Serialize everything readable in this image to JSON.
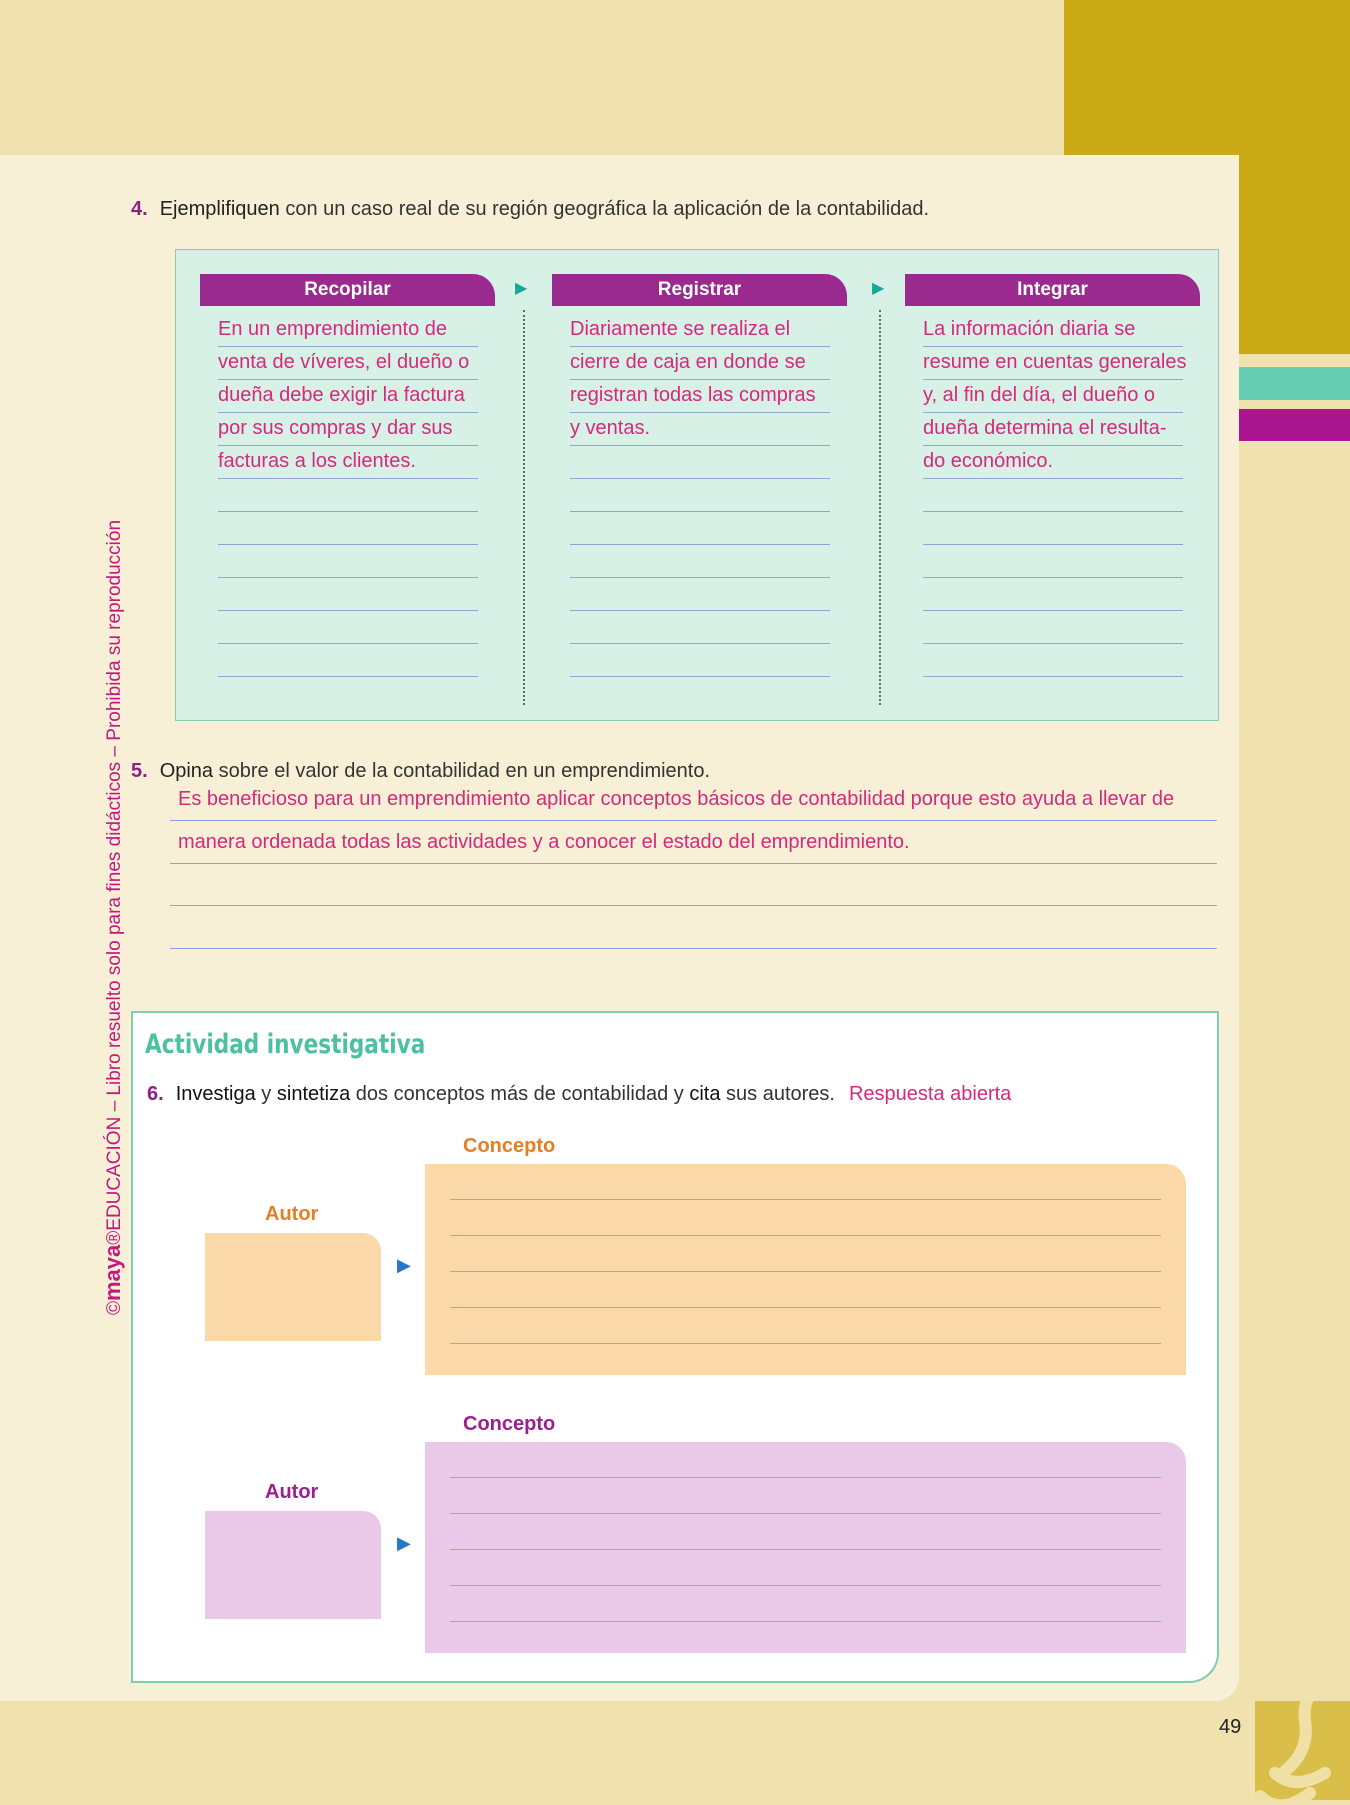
{
  "side_text": {
    "copyright": "©",
    "brand": "maya",
    "rest": "®EDUCACIÓN – Libro resuelto solo para fines didácticos – Prohibida su reproducción"
  },
  "q4": {
    "number": "4.",
    "verb": "Ejemplifiquen",
    "text": " con un caso real de su región geográfica la aplicación de la contabilidad."
  },
  "steps": [
    {
      "title": "Recopilar",
      "lines": [
        "En un emprendimiento de",
        "venta de víveres, el dueño o",
        "dueña debe exigir la factura",
        "por sus compras y dar sus",
        "facturas a los clientes.",
        "",
        "",
        "",
        "",
        "",
        ""
      ]
    },
    {
      "title": "Registrar",
      "lines": [
        "Diariamente se realiza el",
        "cierre de caja en donde se",
        "registran todas las compras",
        "y ventas.",
        "",
        "",
        "",
        "",
        "",
        "",
        ""
      ]
    },
    {
      "title": "Integrar",
      "lines": [
        "La información diaria se",
        "resume en cuentas generales",
        "y, al fin del día, el dueño o",
        "dueña determina el resulta-",
        "do económico.",
        "",
        "",
        "",
        "",
        "",
        ""
      ]
    }
  ],
  "q5": {
    "number": "5.",
    "verb": "Opina",
    "text": " sobre el valor de la contabilidad en un emprendimiento.",
    "answer_lines": [
      "Es beneficioso para un emprendimiento aplicar conceptos básicos de contabilidad porque esto ayuda a llevar de",
      "manera ordenada todas las actividades y a conocer el estado del emprendimiento.",
      "",
      ""
    ]
  },
  "activity": {
    "title": "Actividad investigativa",
    "q6": {
      "number": "6.",
      "w1": "Investiga",
      "t1": " y ",
      "w2": "sintetiza",
      "t2": " dos conceptos más de contabilidad y ",
      "w3": "cita",
      "t3": " sus autores.",
      "answer": "Respuesta abierta"
    },
    "blocks": [
      {
        "concept_label": "Concepto",
        "author_label": "Autor",
        "color": "#fbd8a8",
        "label_color": "#e67e22"
      },
      {
        "concept_label": "Concepto",
        "author_label": "Autor",
        "color": "#e9c9e7",
        "label_color": "#9b1f8e"
      }
    ]
  },
  "page_number": "49",
  "colors": {
    "accent_purple": "#9b2a8f",
    "answer_pink": "#d6287c",
    "teal": "#66cdb3",
    "gold": "#c9a916"
  }
}
